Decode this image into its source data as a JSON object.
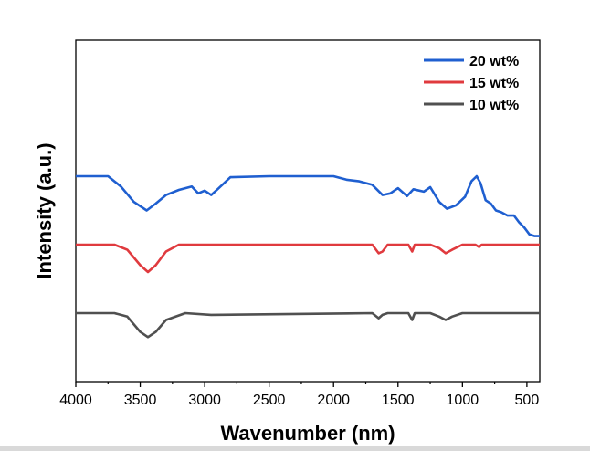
{
  "chart_data": {
    "type": "line",
    "xlabel": "Wavenumber (nm)",
    "ylabel": "Intensity (a.u.)",
    "xlim": [
      4000,
      400
    ],
    "x_reversed": true,
    "xticks": [
      "4000",
      "3500",
      "3000",
      "2500",
      "2000",
      "1500",
      "1000",
      "500"
    ],
    "y_ticks_shown": false,
    "legend_position": "top-right",
    "series": [
      {
        "name": "20 wt%",
        "color": "#1f5fd0",
        "points": [
          [
            4000,
            4.0
          ],
          [
            3750,
            4.0
          ],
          [
            3650,
            3.7
          ],
          [
            3550,
            3.25
          ],
          [
            3450,
            3.0
          ],
          [
            3380,
            3.2
          ],
          [
            3300,
            3.45
          ],
          [
            3200,
            3.6
          ],
          [
            3100,
            3.7
          ],
          [
            3050,
            3.5
          ],
          [
            3000,
            3.58
          ],
          [
            2950,
            3.45
          ],
          [
            2900,
            3.62
          ],
          [
            2800,
            3.97
          ],
          [
            2500,
            4.0
          ],
          [
            2000,
            4.0
          ],
          [
            1900,
            3.9
          ],
          [
            1800,
            3.85
          ],
          [
            1700,
            3.75
          ],
          [
            1620,
            3.45
          ],
          [
            1560,
            3.5
          ],
          [
            1500,
            3.65
          ],
          [
            1430,
            3.42
          ],
          [
            1380,
            3.62
          ],
          [
            1300,
            3.55
          ],
          [
            1250,
            3.68
          ],
          [
            1180,
            3.25
          ],
          [
            1120,
            3.05
          ],
          [
            1050,
            3.15
          ],
          [
            980,
            3.4
          ],
          [
            930,
            3.85
          ],
          [
            890,
            4.0
          ],
          [
            860,
            3.8
          ],
          [
            820,
            3.3
          ],
          [
            780,
            3.2
          ],
          [
            740,
            3.0
          ],
          [
            700,
            2.95
          ],
          [
            650,
            2.85
          ],
          [
            600,
            2.85
          ],
          [
            560,
            2.65
          ],
          [
            520,
            2.5
          ],
          [
            480,
            2.3
          ],
          [
            440,
            2.25
          ],
          [
            400,
            2.25
          ]
        ]
      },
      {
        "name": "15 wt%",
        "color": "#e03a3e",
        "points": [
          [
            4000,
            2.0
          ],
          [
            3700,
            2.0
          ],
          [
            3600,
            1.85
          ],
          [
            3500,
            1.4
          ],
          [
            3440,
            1.2
          ],
          [
            3380,
            1.4
          ],
          [
            3300,
            1.8
          ],
          [
            3200,
            2.0
          ],
          [
            1700,
            2.0
          ],
          [
            1650,
            1.75
          ],
          [
            1620,
            1.8
          ],
          [
            1580,
            2.0
          ],
          [
            1420,
            2.0
          ],
          [
            1390,
            1.8
          ],
          [
            1370,
            2.0
          ],
          [
            1250,
            2.0
          ],
          [
            1180,
            1.9
          ],
          [
            1130,
            1.75
          ],
          [
            1080,
            1.85
          ],
          [
            1000,
            2.0
          ],
          [
            900,
            2.0
          ],
          [
            870,
            1.93
          ],
          [
            850,
            2.0
          ],
          [
            500,
            2.0
          ],
          [
            400,
            2.0
          ]
        ]
      },
      {
        "name": "10 wt%",
        "color": "#505050",
        "points": [
          [
            4000,
            0.0
          ],
          [
            3700,
            0.0
          ],
          [
            3600,
            -0.1
          ],
          [
            3500,
            -0.55
          ],
          [
            3440,
            -0.7
          ],
          [
            3380,
            -0.55
          ],
          [
            3300,
            -0.2
          ],
          [
            3150,
            0.0
          ],
          [
            2950,
            -0.05
          ],
          [
            1700,
            0.0
          ],
          [
            1650,
            -0.15
          ],
          [
            1620,
            -0.05
          ],
          [
            1580,
            0.0
          ],
          [
            1420,
            0.0
          ],
          [
            1390,
            -0.2
          ],
          [
            1370,
            0.0
          ],
          [
            1250,
            0.0
          ],
          [
            1180,
            -0.1
          ],
          [
            1130,
            -0.2
          ],
          [
            1080,
            -0.1
          ],
          [
            1000,
            0.0
          ],
          [
            600,
            0.0
          ],
          [
            400,
            0.0
          ]
        ]
      }
    ]
  }
}
